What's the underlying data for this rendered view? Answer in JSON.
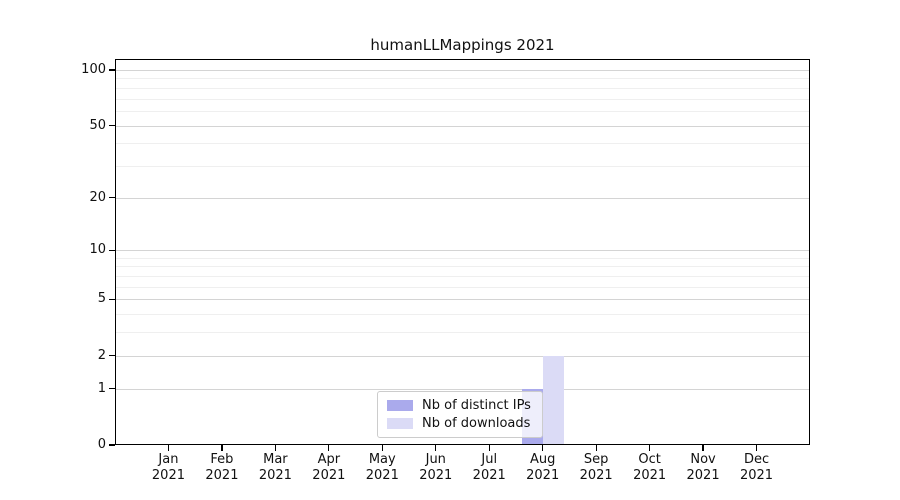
{
  "title": "humanLLMappings 2021",
  "legend": {
    "items": [
      {
        "label": "Nb of distinct IPs",
        "color": "#aaaaec"
      },
      {
        "label": "Nb of downloads",
        "color": "#dbdbf6"
      }
    ]
  },
  "colors": {
    "distinct_ips": "#aaaaec",
    "downloads": "#dbdbf6",
    "grid_major": "#d4d4d4",
    "grid_minor": "#efefef",
    "axis": "#000000"
  },
  "chart_data": {
    "type": "bar",
    "title": "humanLLMappings 2021",
    "categories": [
      "Jan 2021",
      "Feb 2021",
      "Mar 2021",
      "Apr 2021",
      "May 2021",
      "Jun 2021",
      "Jul 2021",
      "Aug 2021",
      "Sep 2021",
      "Oct 2021",
      "Nov 2021",
      "Dec 2021"
    ],
    "series": [
      {
        "name": "Nb of distinct IPs",
        "color": "#aaaaec",
        "values": [
          0,
          0,
          0,
          0,
          0,
          0,
          0,
          1,
          0,
          0,
          0,
          0
        ]
      },
      {
        "name": "Nb of downloads",
        "color": "#dbdbf6",
        "values": [
          0,
          0,
          0,
          0,
          0,
          0,
          0,
          2,
          0,
          0,
          0,
          0
        ]
      }
    ],
    "xlabel": "",
    "ylabel": "",
    "y_scale": "log10(1+y)",
    "y_ticks": [
      0,
      1,
      2,
      5,
      10,
      20,
      50,
      100
    ],
    "y_minor_gridlines": [
      3,
      4,
      6,
      7,
      8,
      9,
      30,
      40,
      60,
      70,
      80,
      90
    ],
    "ylim": [
      0,
      115
    ],
    "grid": "horizontal-only",
    "legend_position": "lower-center-inside"
  }
}
